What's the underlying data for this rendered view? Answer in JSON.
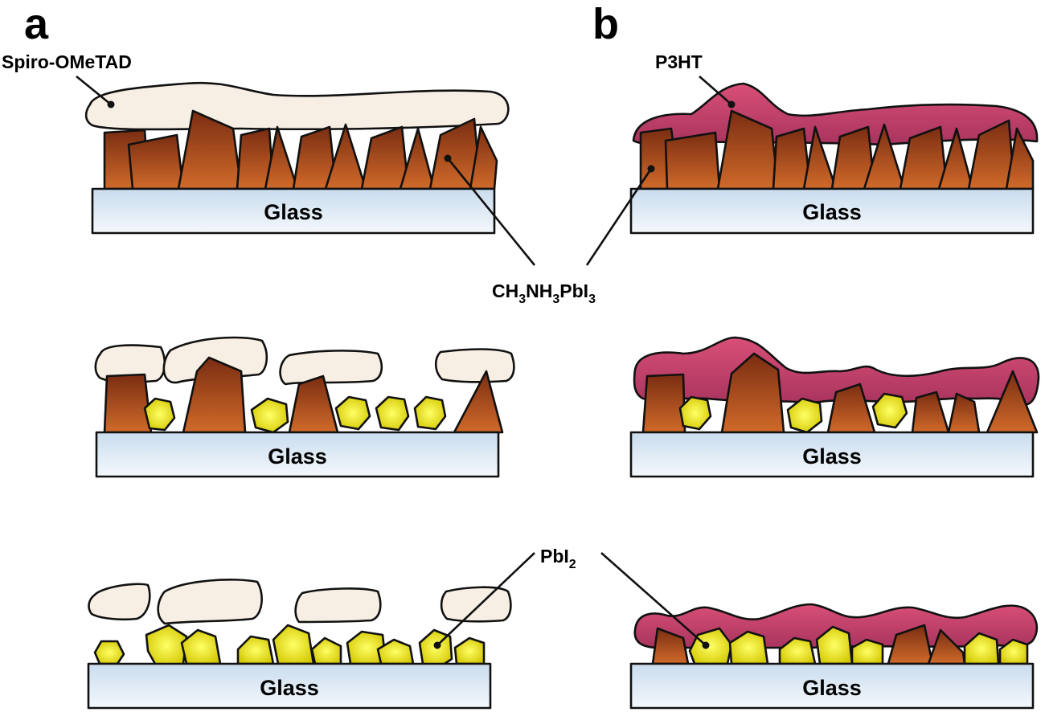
{
  "panels": {
    "a": "a",
    "b": "b"
  },
  "labels": {
    "spiro": "Spiro-OMeTAD",
    "p3ht": "P3HT",
    "perovskite": {
      "base": "CH",
      "sub1": "3",
      "mid": "NH",
      "sub2": "3",
      "tail": "PbI",
      "sub3": "3"
    },
    "pbi2": {
      "base": "PbI",
      "sub": "2"
    }
  },
  "glass": [
    "Glass",
    "Glass",
    "Glass",
    "Glass",
    "Glass",
    "Glass"
  ],
  "colors": {
    "spiro": "#f7efe3",
    "p3ht": "#d0476f",
    "perovskite_top": "#7a2d12",
    "perovskite_bottom": "#d06a2a",
    "pbi2_center": "#ffff4a",
    "pbi2_edge": "#c8c000",
    "glass_top": "#c9dcee",
    "glass_bottom": "#f4f8fc"
  }
}
